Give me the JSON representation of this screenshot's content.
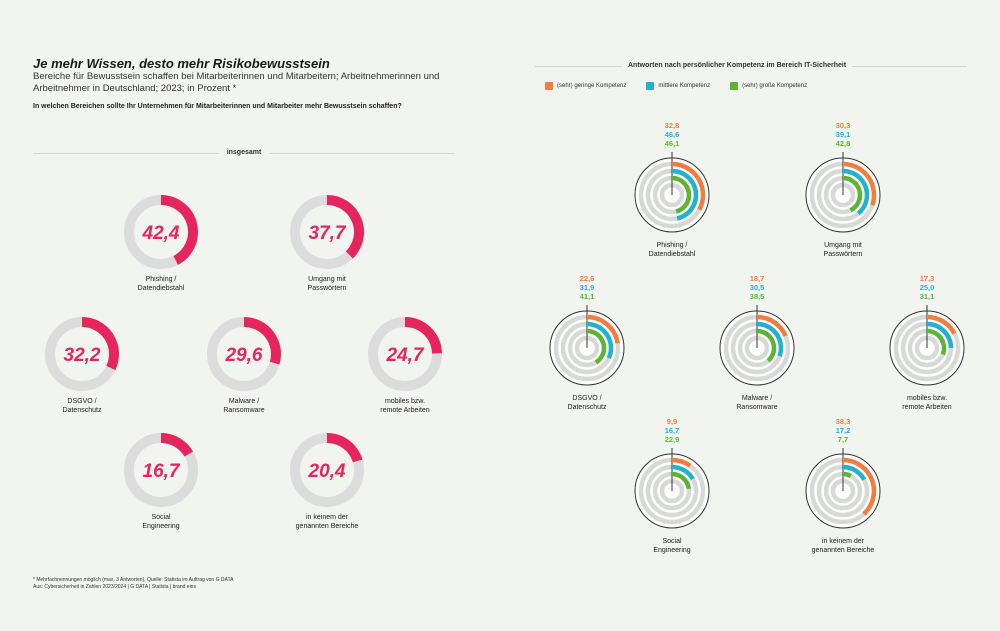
{
  "header": {
    "title": "Je mehr Wissen, desto mehr Risikobewusstsein",
    "subtitle": "Bereiche für Bewusstsein schaffen bei Mitarbeiterinnen und Mitarbeitern; Arbeitnehmerinnen und Arbeitnehmer in Deutschland; 2023; in Prozent *",
    "question": "In welchen Bereichen sollte Ihr Unternehmen für Mitarbeiterinnen und Mitarbeiter mehr Bewusstsein schaffen?"
  },
  "left_section_label": "insgesamt",
  "right_section_label": "Antworten nach persönlicher Kompetenz im Bereich IT-Sicherheit",
  "legend": [
    {
      "label": "(sehr) geringe Kompetenz",
      "color": "#f47c3c"
    },
    {
      "label": "mittlere Kompetenz",
      "color": "#1fb3d1"
    },
    {
      "label": "(sehr) große Kompetenz",
      "color": "#5cb531"
    }
  ],
  "colors": {
    "accent": "#e6245e",
    "track": "#dcdcdc",
    "ring_bg": "#d7d9d6",
    "ring_gap": "#f2f4ef"
  },
  "footnote": {
    "line1": "* Mehrfachnennungen möglich (max. 3 Antworten), Quelle: Statista im Auftrag von G DATA",
    "line2": "Aus: Cybersicherheit in Zahlen 2023/2024 | G DATA | Statista | brand eins"
  },
  "chart_data": [
    {
      "type": "donut",
      "title": "insgesamt",
      "categories": [
        "Phishing / Datendiebstahl",
        "Umgang mit Passwörtern",
        "DSGVO / Datenschutz",
        "Malware / Ransomware",
        "mobiles bzw. remote Arbeiten",
        "Social Engineering",
        "in keinem der genannten Bereiche"
      ],
      "label_lines": [
        [
          "Phishing /",
          "Datendiebstahl"
        ],
        [
          "Umgang mit",
          "Passwörtern"
        ],
        [
          "DSGVO /",
          "Datenschutz"
        ],
        [
          "Malware /",
          "Ransomware"
        ],
        [
          "mobiles bzw.",
          "remote Arbeiten"
        ],
        [
          "Social",
          "Engineering"
        ],
        [
          "in keinem der",
          "genannten Bereiche"
        ]
      ],
      "values": [
        42.4,
        37.7,
        32.2,
        29.6,
        24.7,
        16.7,
        20.4
      ],
      "value_labels": [
        "42,4",
        "37,7",
        "32,2",
        "29,6",
        "24,7",
        "16,7",
        "20,4"
      ],
      "ylim": [
        0,
        100
      ]
    },
    {
      "type": "radial-bar",
      "title": "Antworten nach persönlicher Kompetenz im Bereich IT-Sicherheit",
      "categories": [
        "Phishing / Datendiebstahl",
        "Umgang mit Passwörtern",
        "DSGVO / Datenschutz",
        "Malware / Ransomware",
        "mobiles bzw. remote Arbeiten",
        "Social Engineering",
        "in keinem der genannten Bereiche"
      ],
      "label_lines": [
        [
          "Phishing /",
          "Datendiebstahl"
        ],
        [
          "Umgang mit",
          "Passwörtern"
        ],
        [
          "DSGVO /",
          "Datenschutz"
        ],
        [
          "Malware /",
          "Ransomware"
        ],
        [
          "mobiles bzw.",
          "remote Arbeiten"
        ],
        [
          "Social",
          "Engineering"
        ],
        [
          "in keinem der",
          "genannten Bereiche"
        ]
      ],
      "series": [
        {
          "name": "(sehr) geringe Kompetenz",
          "color": "#f47c3c",
          "values": [
            32.8,
            30.3,
            22.6,
            18.7,
            17.3,
            9.9,
            38.3
          ],
          "value_labels": [
            "32,8",
            "30,3",
            "22,6",
            "18,7",
            "17,3",
            "9,9",
            "38,3"
          ]
        },
        {
          "name": "mittlere Kompetenz",
          "color": "#1fb3d1",
          "values": [
            46.6,
            39.1,
            31.9,
            30.5,
            25.0,
            16.7,
            17.2
          ],
          "value_labels": [
            "46,6",
            "39,1",
            "31,9",
            "30,5",
            "25,0",
            "16,7",
            "17,2"
          ]
        },
        {
          "name": "(sehr) große Kompetenz",
          "color": "#5cb531",
          "values": [
            46.1,
            42.8,
            41.1,
            38.5,
            31.1,
            22.9,
            7.7
          ],
          "value_labels": [
            "46,1",
            "42,8",
            "41,1",
            "38,5",
            "31,1",
            "22,9",
            "7,7"
          ]
        }
      ],
      "ylim": [
        0,
        100
      ]
    }
  ]
}
